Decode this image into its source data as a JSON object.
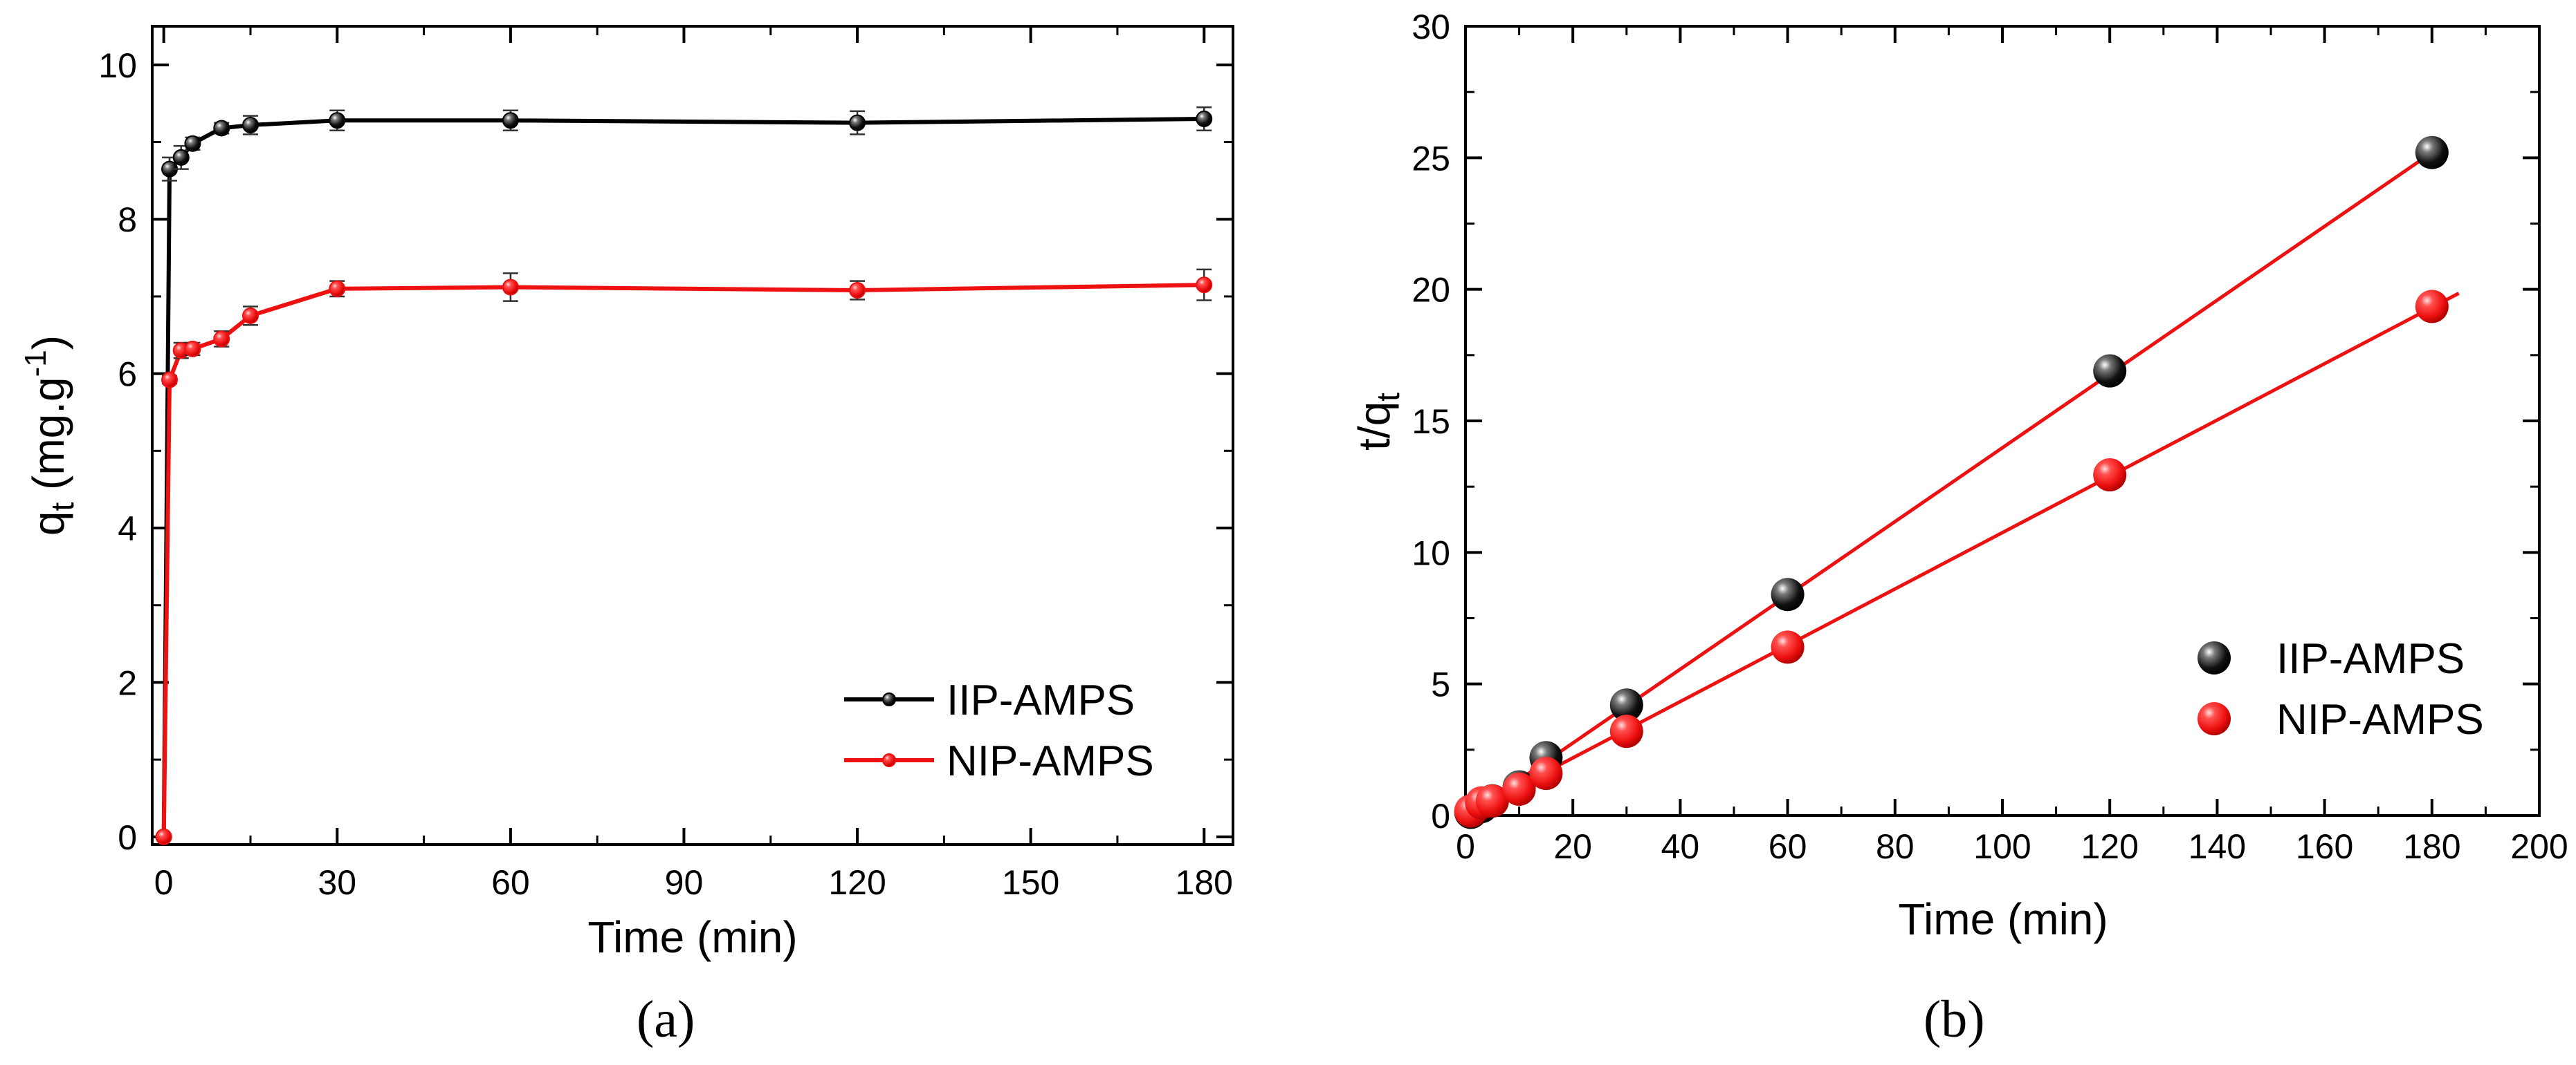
{
  "chart_data": [
    {
      "type": "line",
      "panel_label": "(a)",
      "xlabel": "Time (min)",
      "ylabel": "q",
      "ylabel_sub": "t",
      "ylabel_unit": " (mg.g",
      "ylabel_sup": "-1",
      "ylabel_close": ")",
      "xlim": [
        -2,
        185
      ],
      "ylim": [
        -0.1,
        10.5
      ],
      "xticks": [
        0,
        30,
        60,
        90,
        120,
        150,
        180
      ],
      "yticks": [
        0,
        2,
        4,
        6,
        8,
        10
      ],
      "legend_position": "bottom-right",
      "series": [
        {
          "name": "IIP-AMPS",
          "color": "#000000",
          "x": [
            0,
            1,
            3,
            5,
            10,
            15,
            30,
            60,
            120,
            180
          ],
          "y": [
            0,
            8.65,
            8.8,
            8.98,
            9.18,
            9.22,
            9.28,
            9.28,
            9.25,
            9.3
          ],
          "err": [
            0,
            0.15,
            0.15,
            0.08,
            0.07,
            0.12,
            0.13,
            0.13,
            0.15,
            0.15
          ]
        },
        {
          "name": "NIP-AMPS",
          "color": "#ee1111",
          "x": [
            0,
            1,
            3,
            5,
            10,
            15,
            30,
            60,
            120,
            180
          ],
          "y": [
            0,
            5.92,
            6.3,
            6.32,
            6.45,
            6.75,
            7.1,
            7.12,
            7.08,
            7.15
          ],
          "err": [
            0,
            0.05,
            0.1,
            0.08,
            0.1,
            0.12,
            0.1,
            0.18,
            0.12,
            0.2
          ]
        }
      ]
    },
    {
      "type": "scatter",
      "panel_label": "(b)",
      "xlabel": "Time (min)",
      "ylabel": "t/q",
      "ylabel_sub": "t",
      "xlim": [
        0,
        200
      ],
      "ylim": [
        0,
        30
      ],
      "xticks": [
        0,
        20,
        40,
        60,
        80,
        100,
        120,
        140,
        160,
        180,
        200
      ],
      "yticks": [
        0,
        5,
        10,
        15,
        20,
        25,
        30
      ],
      "legend_position": "right",
      "fit_color": "#ee1111",
      "series": [
        {
          "name": "IIP-AMPS",
          "color": "#000000",
          "x": [
            1,
            3,
            5,
            10,
            15,
            30,
            60,
            120,
            180
          ],
          "y": [
            0.12,
            0.34,
            0.56,
            1.09,
            2.2,
            4.2,
            8.4,
            16.9,
            25.2
          ],
          "fit_x": [
            0,
            180
          ],
          "fit_y": [
            -0.05,
            25.2
          ]
        },
        {
          "name": "NIP-AMPS",
          "color": "#ee1111",
          "x": [
            1,
            3,
            5,
            10,
            15,
            30,
            60,
            120,
            180
          ],
          "y": [
            0.17,
            0.48,
            0.55,
            1.0,
            1.6,
            3.2,
            6.4,
            12.95,
            19.35
          ],
          "fit_x": [
            0,
            185
          ],
          "fit_y": [
            0.05,
            19.85
          ]
        }
      ]
    }
  ]
}
